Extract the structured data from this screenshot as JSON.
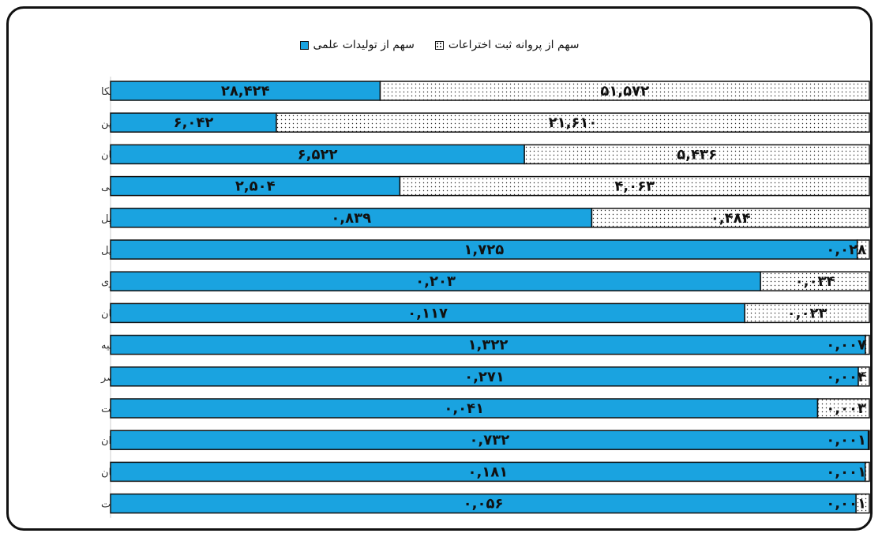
{
  "chart_data": {
    "type": "bar",
    "stacked": "percent",
    "orientation": "horizontal",
    "categories": [
      "آمریکا",
      "ژاپن",
      "آلمان",
      "کره جنوبی",
      "اسرائیل",
      "برزیل",
      "مالزی",
      "عربستان",
      "ترکیه",
      "مصر",
      "کویت",
      "ایران",
      "پاکستان",
      "امارات"
    ],
    "series": [
      {
        "name": "سهم از تولیدات علمی",
        "color": "#1aa3e0",
        "pattern": "solid",
        "values": [
          28.424,
          6.042,
          6.522,
          2.504,
          0.839,
          1.725,
          0.203,
          0.117,
          1.322,
          0.271,
          0.041,
          0.732,
          0.181,
          0.056
        ],
        "labels": [
          "۲۸,۴۲۴",
          "۶,۰۴۲",
          "۶,۵۲۲",
          "۲,۵۰۴",
          "۰,۸۳۹",
          "۱,۷۲۵",
          "۰,۲۰۳",
          "۰,۱۱۷",
          "۱,۳۲۲",
          "۰,۲۷۱",
          "۰,۰۴۱",
          "۰,۷۳۲",
          "۰,۱۸۱",
          "۰,۰۵۶"
        ]
      },
      {
        "name": "سهم از پروانه ثبت اختراعات",
        "color": "#ffffff",
        "pattern": "dots",
        "values": [
          51.572,
          21.61,
          5.436,
          4.063,
          0.484,
          0.028,
          0.034,
          0.023,
          0.007,
          0.004,
          0.003,
          0.001,
          0.001,
          0.001
        ],
        "labels": [
          "۵۱,۵۷۲",
          "۲۱,۶۱۰",
          "۵,۴۳۶",
          "۴,۰۶۳",
          "۰,۴۸۴",
          "۰,۰۲۸",
          "۰,۰۳۴",
          "۰,۰۲۳",
          "۰,۰۰۷",
          "۰,۰۰۴",
          "۰,۰۰۳",
          "۰,۰۰۱",
          "۰,۰۰۱",
          "۰,۰۰۱"
        ]
      }
    ],
    "legend_position": "top-center",
    "grid": false
  },
  "legend": {
    "patents": "سهم از پروانه ثبت اختراعات",
    "science": "سهم از تولیدات علمی"
  }
}
